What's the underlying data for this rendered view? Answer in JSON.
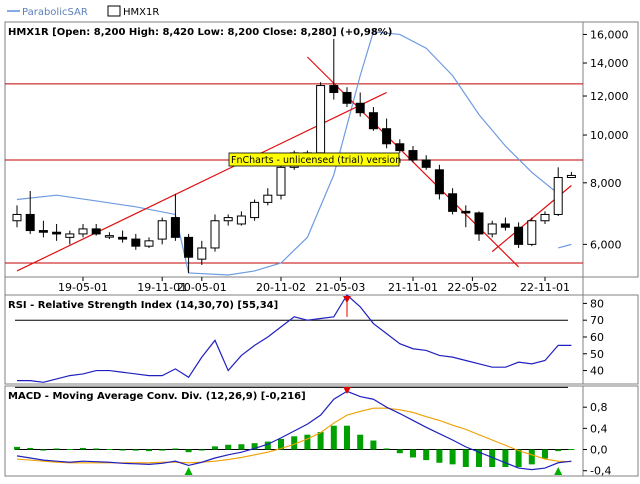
{
  "legend": {
    "items": [
      {
        "label": "ParabolicSAR",
        "color": "#5b8fd9",
        "swatch": "line"
      },
      {
        "label": "HMX1R",
        "color": "#000000",
        "swatch": "box"
      }
    ]
  },
  "colors": {
    "frame": "#808080",
    "sar": "#6f9be0",
    "trendline": "#e01010",
    "level": "#c00000",
    "rsi_line": "#2020c0",
    "macd_line": "#2020c0",
    "signal_line": "#f0a000",
    "hist_pos": "#00a000",
    "hist_neg": "#00a000",
    "marker": "#e00000",
    "watermark_bg": "#ffff00"
  },
  "price_panel": {
    "title": "HMX1R [Open: 8,200   High: 8,420   Low: 8,200   Close: 8,280] (+0,98%)",
    "watermark": "FnCharts - unlicensed (trial) version",
    "y_ticks": [
      "16,000",
      "14,000",
      "12,000",
      "10,000",
      "8,000",
      "6,000"
    ],
    "x_ticks": [
      "19-05-01",
      "19-11-01",
      "20-05-01",
      "20-11-02",
      "21-05-03",
      "21-11-01",
      "22-05-02",
      "22-11-01"
    ]
  },
  "rsi_panel": {
    "title": "RSI - Relative Strength Index (14,30,70) [55,34]",
    "y_ticks": [
      "80",
      "70",
      "60",
      "50",
      "40"
    ]
  },
  "macd_panel": {
    "title": "MACD - Moving Average Conv. Div. (12,26,9) [-0,216]",
    "y_ticks": [
      "0,8",
      "0,4",
      "0,0",
      "-0,4"
    ]
  },
  "chart_data": [
    {
      "type": "candlestick",
      "name": "HMX1R",
      "yscale": "log",
      "ylim": [
        5200,
        16800
      ],
      "levels": [
        12700,
        8900,
        5500
      ],
      "trendlines": [
        {
          "from": [
            0,
            5300
          ],
          "to": [
            28,
            12200
          ]
        },
        {
          "from": [
            22,
            14400
          ],
          "to": [
            38,
            5400
          ]
        },
        {
          "from": [
            36,
            5800
          ],
          "to": [
            42,
            7900
          ]
        }
      ],
      "candles": [
        {
          "i": 0,
          "o": 6700,
          "h": 7200,
          "l": 6500,
          "c": 6900
        },
        {
          "i": 1,
          "o": 6900,
          "h": 7700,
          "l": 6300,
          "c": 6400
        },
        {
          "i": 2,
          "o": 6400,
          "h": 6700,
          "l": 6200,
          "c": 6350
        },
        {
          "i": 3,
          "o": 6350,
          "h": 6600,
          "l": 6100,
          "c": 6300
        },
        {
          "i": 4,
          "o": 6200,
          "h": 6400,
          "l": 6000,
          "c": 6300
        },
        {
          "i": 5,
          "o": 6300,
          "h": 6600,
          "l": 6200,
          "c": 6450
        },
        {
          "i": 6,
          "o": 6450,
          "h": 6600,
          "l": 6250,
          "c": 6300
        },
        {
          "i": 7,
          "o": 6250,
          "h": 6350,
          "l": 6150,
          "c": 6250
        },
        {
          "i": 8,
          "o": 6200,
          "h": 6400,
          "l": 6050,
          "c": 6150
        },
        {
          "i": 9,
          "o": 6150,
          "h": 6300,
          "l": 5850,
          "c": 5950
        },
        {
          "i": 10,
          "o": 5950,
          "h": 6200,
          "l": 5900,
          "c": 6100
        },
        {
          "i": 11,
          "o": 6150,
          "h": 6800,
          "l": 6000,
          "c": 6700
        },
        {
          "i": 12,
          "o": 6800,
          "h": 7600,
          "l": 6100,
          "c": 6200
        },
        {
          "i": 13,
          "o": 6200,
          "h": 6300,
          "l": 5250,
          "c": 5650
        },
        {
          "i": 14,
          "o": 5600,
          "h": 6100,
          "l": 5450,
          "c": 5900
        },
        {
          "i": 15,
          "o": 5900,
          "h": 6900,
          "l": 5800,
          "c": 6700
        },
        {
          "i": 16,
          "o": 6700,
          "h": 6900,
          "l": 6550,
          "c": 6800
        },
        {
          "i": 17,
          "o": 6600,
          "h": 7000,
          "l": 6550,
          "c": 6850
        },
        {
          "i": 18,
          "o": 6800,
          "h": 7400,
          "l": 6700,
          "c": 7300
        },
        {
          "i": 19,
          "o": 7300,
          "h": 7800,
          "l": 7200,
          "c": 7550
        },
        {
          "i": 20,
          "o": 7550,
          "h": 8700,
          "l": 7400,
          "c": 8600
        },
        {
          "i": 21,
          "o": 8600,
          "h": 9300,
          "l": 8500,
          "c": 9200
        },
        {
          "i": 22,
          "o": 9200,
          "h": 9300,
          "l": 9000,
          "c": 9100
        },
        {
          "i": 23,
          "o": 9200,
          "h": 12800,
          "l": 9100,
          "c": 12600
        },
        {
          "i": 24,
          "o": 12600,
          "h": 16800,
          "l": 11800,
          "c": 12200
        },
        {
          "i": 25,
          "o": 12200,
          "h": 12500,
          "l": 11400,
          "c": 11600
        },
        {
          "i": 26,
          "o": 11600,
          "h": 12200,
          "l": 10900,
          "c": 11100
        },
        {
          "i": 27,
          "o": 11100,
          "h": 11400,
          "l": 10200,
          "c": 10300
        },
        {
          "i": 28,
          "o": 10300,
          "h": 10800,
          "l": 9400,
          "c": 9600
        },
        {
          "i": 29,
          "o": 9600,
          "h": 9800,
          "l": 9200,
          "c": 9300
        },
        {
          "i": 30,
          "o": 9300,
          "h": 9500,
          "l": 8800,
          "c": 8900
        },
        {
          "i": 31,
          "o": 8900,
          "h": 9100,
          "l": 8500,
          "c": 8600
        },
        {
          "i": 32,
          "o": 8500,
          "h": 8700,
          "l": 7400,
          "c": 7600
        },
        {
          "i": 33,
          "o": 7600,
          "h": 7800,
          "l": 6900,
          "c": 7000
        },
        {
          "i": 34,
          "o": 7000,
          "h": 7200,
          "l": 6500,
          "c": 6950
        },
        {
          "i": 35,
          "o": 6950,
          "h": 7000,
          "l": 6100,
          "c": 6300
        },
        {
          "i": 36,
          "o": 6300,
          "h": 6700,
          "l": 6200,
          "c": 6600
        },
        {
          "i": 37,
          "o": 6600,
          "h": 6800,
          "l": 6400,
          "c": 6500
        },
        {
          "i": 38,
          "o": 6500,
          "h": 6650,
          "l": 5900,
          "c": 6000
        },
        {
          "i": 39,
          "o": 6000,
          "h": 6800,
          "l": 5950,
          "c": 6700
        },
        {
          "i": 40,
          "o": 6700,
          "h": 7000,
          "l": 6600,
          "c": 6900
        },
        {
          "i": 41,
          "o": 6900,
          "h": 8600,
          "l": 6850,
          "c": 8200
        },
        {
          "i": 42,
          "o": 8200,
          "h": 8420,
          "l": 8200,
          "c": 8280
        }
      ],
      "parabolic_sar": [
        {
          "i": 0,
          "v": 7400
        },
        {
          "i": 3,
          "v": 7550
        },
        {
          "i": 6,
          "v": 7350
        },
        {
          "i": 9,
          "v": 7150
        },
        {
          "i": 12,
          "v": 6900
        },
        {
          "i": 13,
          "v": 5250
        },
        {
          "i": 16,
          "v": 5200
        },
        {
          "i": 18,
          "v": 5300
        },
        {
          "i": 20,
          "v": 5500
        },
        {
          "i": 22,
          "v": 6200
        },
        {
          "i": 24,
          "v": 8300
        },
        {
          "i": 26,
          "v": 13200
        },
        {
          "i": 27,
          "v": 16200
        },
        {
          "i": 29,
          "v": 16000
        },
        {
          "i": 31,
          "v": 15000
        },
        {
          "i": 33,
          "v": 13200
        },
        {
          "i": 35,
          "v": 11000
        },
        {
          "i": 37,
          "v": 9500
        },
        {
          "i": 39,
          "v": 8400
        },
        {
          "i": 41,
          "v": 7600
        },
        {
          "i": 41,
          "v": 5900
        },
        {
          "i": 42,
          "v": 6000
        }
      ],
      "x_tick_positions": [
        5,
        11,
        14,
        20,
        24.5,
        30,
        34.5,
        40
      ]
    },
    {
      "type": "line",
      "name": "RSI",
      "ylim": [
        32,
        85
      ],
      "levels": [
        70,
        30
      ],
      "values": [
        34,
        34,
        33,
        35,
        37,
        38,
        40,
        40,
        39,
        38,
        37,
        37,
        41,
        36,
        48,
        58,
        40,
        49,
        55,
        60,
        66,
        72,
        70,
        71,
        72,
        85,
        78,
        68,
        62,
        56,
        53,
        52,
        49,
        48,
        46,
        44,
        42,
        42,
        45,
        44,
        46,
        55,
        55
      ],
      "markers": [
        {
          "i": 25,
          "value": 72
        }
      ]
    },
    {
      "type": "line",
      "name": "MACD",
      "ylim": [
        -0.5,
        1.2
      ],
      "macd": [
        -0.12,
        -0.16,
        -0.2,
        -0.22,
        -0.24,
        -0.22,
        -0.23,
        -0.24,
        -0.26,
        -0.27,
        -0.28,
        -0.26,
        -0.22,
        -0.3,
        -0.24,
        -0.16,
        -0.1,
        -0.05,
        0.02,
        0.1,
        0.22,
        0.35,
        0.48,
        0.65,
        0.95,
        1.1,
        1.0,
        0.95,
        0.8,
        0.68,
        0.55,
        0.42,
        0.3,
        0.18,
        0.05,
        -0.05,
        -0.15,
        -0.25,
        -0.35,
        -0.38,
        -0.35,
        -0.25,
        -0.22
      ],
      "signal": [
        -0.18,
        -0.2,
        -0.22,
        -0.24,
        -0.25,
        -0.25,
        -0.25,
        -0.25,
        -0.25,
        -0.25,
        -0.25,
        -0.24,
        -0.24,
        -0.25,
        -0.24,
        -0.22,
        -0.19,
        -0.15,
        -0.1,
        -0.05,
        0.02,
        0.1,
        0.2,
        0.32,
        0.5,
        0.65,
        0.72,
        0.78,
        0.78,
        0.75,
        0.7,
        0.62,
        0.55,
        0.46,
        0.38,
        0.28,
        0.18,
        0.08,
        -0.02,
        -0.1,
        -0.18,
        -0.22,
        -0.23
      ],
      "histogram": [
        0.05,
        0.03,
        0,
        0.02,
        0.01,
        0.03,
        0.02,
        0.01,
        0.0,
        -0.02,
        -0.03,
        -0.02,
        0.02,
        -0.05,
        0.0,
        0.06,
        0.09,
        0.1,
        0.12,
        0.15,
        0.2,
        0.25,
        0.28,
        0.33,
        0.45,
        0.45,
        0.28,
        0.17,
        0.02,
        -0.07,
        -0.15,
        -0.2,
        -0.25,
        -0.28,
        -0.33,
        -0.33,
        -0.33,
        -0.33,
        -0.33,
        -0.28,
        -0.17,
        -0.03,
        0.01
      ],
      "markers": [
        {
          "i": 25,
          "type": "top"
        },
        {
          "i": 13,
          "type": "bottom"
        },
        {
          "i": 41,
          "type": "bottom"
        }
      ]
    }
  ]
}
